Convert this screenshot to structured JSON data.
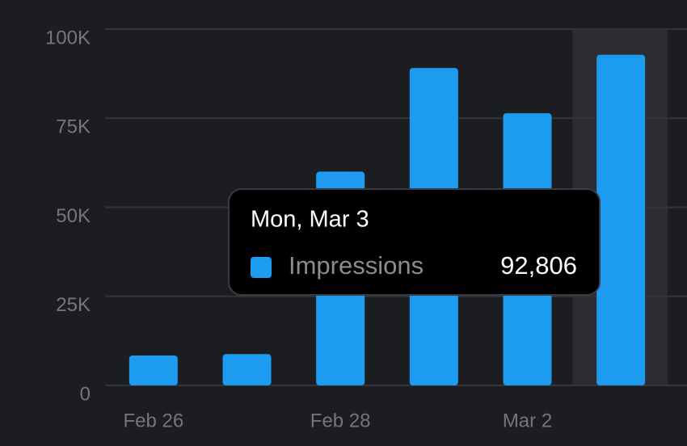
{
  "chart_data": {
    "type": "bar",
    "categories": [
      "Feb 26",
      null,
      "Feb 28",
      null,
      "Mar 2",
      null
    ],
    "series": [
      {
        "name": "Impressions",
        "color": "#1d9bf0",
        "values": [
          8400,
          8800,
          60000,
          89100,
          76400,
          92806
        ],
        "value_labels": [
          null,
          null,
          null,
          null,
          null,
          "92,806"
        ]
      }
    ],
    "ylim": [
      0,
      100000
    ],
    "yticks": [
      0,
      {
        "value": 25000,
        "label": "25K"
      },
      {
        "value": 50000,
        "label": "50K"
      },
      {
        "value": 75000,
        "label": "75K"
      },
      {
        "value": 100000,
        "label": "100K"
      }
    ],
    "grid": true,
    "highlight_index": 5,
    "tooltip": {
      "title": "Mon, Mar 3"
    }
  }
}
